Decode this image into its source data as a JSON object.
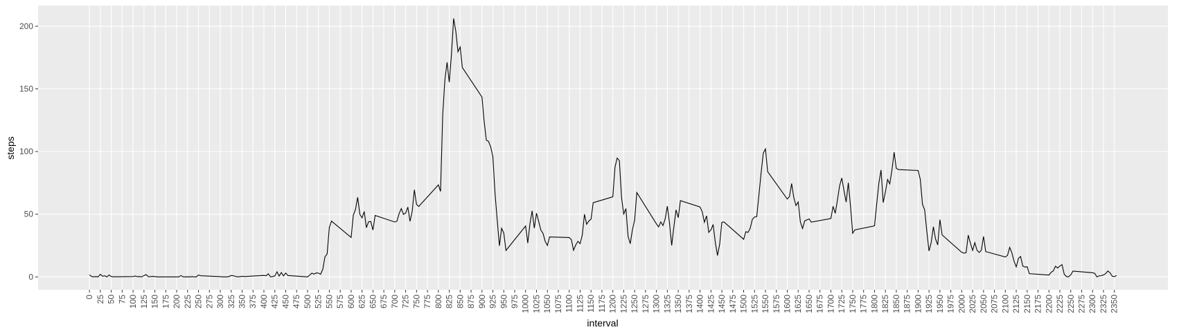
{
  "chart_data": {
    "type": "line",
    "xlabel": "interval",
    "ylabel": "steps",
    "color": "#000000",
    "grid": true,
    "x": [
      0,
      5,
      10,
      15,
      20,
      25,
      30,
      35,
      40,
      45,
      50,
      55,
      100,
      105,
      110,
      115,
      120,
      125,
      130,
      135,
      140,
      145,
      150,
      155,
      200,
      205,
      210,
      215,
      220,
      225,
      230,
      235,
      240,
      245,
      250,
      255,
      300,
      305,
      310,
      315,
      320,
      325,
      330,
      335,
      340,
      345,
      350,
      355,
      400,
      405,
      410,
      415,
      420,
      425,
      430,
      435,
      440,
      445,
      450,
      455,
      500,
      505,
      510,
      515,
      520,
      525,
      530,
      535,
      540,
      545,
      550,
      555,
      600,
      605,
      610,
      615,
      620,
      625,
      630,
      635,
      640,
      645,
      650,
      655,
      700,
      705,
      710,
      715,
      720,
      725,
      730,
      735,
      740,
      745,
      750,
      755,
      800,
      805,
      810,
      815,
      820,
      825,
      830,
      835,
      840,
      845,
      850,
      855,
      900,
      905,
      910,
      915,
      920,
      925,
      930,
      935,
      940,
      945,
      950,
      955,
      1000,
      1005,
      1010,
      1015,
      1020,
      1025,
      1030,
      1035,
      1040,
      1045,
      1050,
      1055,
      1100,
      1105,
      1110,
      1115,
      1120,
      1125,
      1130,
      1135,
      1140,
      1145,
      1150,
      1155,
      1200,
      1205,
      1210,
      1215,
      1220,
      1225,
      1230,
      1235,
      1240,
      1245,
      1250,
      1255,
      1300,
      1305,
      1310,
      1315,
      1320,
      1325,
      1330,
      1335,
      1340,
      1345,
      1350,
      1355,
      1400,
      1405,
      1410,
      1415,
      1420,
      1425,
      1430,
      1435,
      1440,
      1445,
      1450,
      1455,
      1500,
      1505,
      1510,
      1515,
      1520,
      1525,
      1530,
      1535,
      1540,
      1545,
      1550,
      1555,
      1600,
      1605,
      1610,
      1615,
      1620,
      1625,
      1630,
      1635,
      1640,
      1645,
      1650,
      1655,
      1700,
      1705,
      1710,
      1715,
      1720,
      1725,
      1730,
      1735,
      1740,
      1745,
      1750,
      1755,
      1800,
      1805,
      1810,
      1815,
      1820,
      1825,
      1830,
      1835,
      1840,
      1845,
      1850,
      1855,
      1900,
      1905,
      1910,
      1915,
      1920,
      1925,
      1930,
      1935,
      1940,
      1945,
      1950,
      1955,
      2000,
      2005,
      2010,
      2015,
      2020,
      2025,
      2030,
      2035,
      2040,
      2045,
      2050,
      2055,
      2100,
      2105,
      2110,
      2115,
      2120,
      2125,
      2130,
      2135,
      2140,
      2145,
      2150,
      2155,
      2200,
      2205,
      2210,
      2215,
      2220,
      2225,
      2230,
      2235,
      2240,
      2245,
      2250,
      2255,
      2300,
      2305,
      2310,
      2315,
      2320,
      2325,
      2330,
      2335,
      2340,
      2345,
      2350,
      2355
    ],
    "values": [
      1.7,
      0.3,
      0.1,
      0.2,
      0.1,
      2.1,
      0.5,
      0.9,
      0,
      1.5,
      0.3,
      0.1,
      0.3,
      0.7,
      0.2,
      0.3,
      0,
      1.1,
      1.8,
      0.2,
      0.2,
      0.4,
      0.3,
      0,
      0,
      0,
      1.1,
      0,
      0,
      0.1,
      0,
      0.2,
      0,
      0,
      1.5,
      0.9,
      0.2,
      0,
      0,
      0,
      0.3,
      1.1,
      0.9,
      0.4,
      0,
      0.2,
      0.5,
      0.3,
      1.2,
      0.9,
      2.5,
      0.1,
      0.3,
      0.8,
      4.1,
      0.7,
      3.5,
      0.8,
      3.1,
      1.1,
      0,
      1.5,
      3.0,
      2.2,
      3.2,
      3.0,
      2.1,
      6.1,
      16.0,
      18.3,
      39.5,
      44.5,
      31.5,
      49.3,
      53.8,
      63.5,
      50.0,
      47.1,
      52.2,
      39.3,
      44.0,
      44.2,
      37.4,
      49.0,
      43.8,
      44.4,
      50.5,
      54.5,
      49.9,
      50.98,
      55.7,
      44.3,
      52.3,
      69.5,
      57.8,
      56.2,
      73.4,
      68.2,
      129.4,
      157.5,
      171.2,
      155.4,
      177.3,
      206.2,
      195.9,
      179.6,
      183.4,
      167.0,
      143.5,
      124.0,
      109.1,
      108.1,
      103.7,
      95.97,
      66.2,
      45.2,
      24.8,
      38.8,
      34.98,
      21.1,
      40.6,
      26.98,
      42.4,
      52.7,
      38.9,
      50.8,
      44.3,
      37.4,
      34.7,
      28.3,
      25.1,
      31.9,
      31.4,
      29.7,
      21.3,
      25.5,
      28.4,
      26.5,
      33.4,
      49.98,
      42.0,
      44.6,
      46.0,
      59.2,
      63.9,
      87.6,
      94.8,
      92.8,
      63.4,
      50.2,
      54.5,
      32.4,
      26.5,
      37.7,
      45.1,
      67.3,
      42.3,
      39.9,
      43.9,
      40.98,
      46.2,
      56.4,
      42.8,
      25.1,
      39.97,
      53.5,
      47.3,
      60.8,
      55.8,
      51.96,
      43.6,
      48.7,
      35.5,
      37.5,
      41.8,
      27.5,
      17.1,
      26.1,
      43.6,
      43.8,
      30.0,
      36.1,
      35.5,
      38.8,
      45.96,
      47.8,
      48.1,
      65.3,
      82.9,
      98.7,
      102.1,
      83.96,
      62.1,
      64.1,
      74.5,
      63.2,
      56.9,
      59.8,
      43.9,
      38.6,
      44.7,
      45.5,
      46.2,
      43.7,
      46.6,
      56.3,
      50.7,
      61.2,
      72.7,
      78.9,
      68.9,
      59.7,
      75.1,
      56.5,
      34.8,
      37.5,
      40.7,
      58.0,
      74.7,
      85.3,
      59.3,
      67.8,
      77.7,
      74.2,
      85.3,
      99.5,
      86.6,
      85.6,
      84.9,
      77.8,
      58.0,
      53.4,
      36.3,
      20.7,
      27.4,
      40.0,
      30.2,
      25.5,
      45.7,
      33.5,
      19.6,
      19.0,
      19.3,
      33.3,
      26.8,
      21.2,
      27.3,
      21.3,
      19.5,
      21.3,
      32.3,
      20.2,
      15.9,
      17.2,
      23.5,
      19.2,
      12.5,
      8.0,
      14.7,
      16.3,
      8.7,
      7.8,
      8.1,
      2.6,
      1.5,
      3.7,
      4.8,
      8.5,
      7.1,
      8.7,
      9.8,
      2.2,
      0.3,
      0.1,
      1.6,
      4.6,
      3.3,
      2.8,
      0,
      0.8,
      1.0,
      1.6,
      2.6,
      4.7,
      3.3,
      0.6,
      0.2,
      1.1
    ],
    "xlim": [
      -117.75,
      2472.75
    ],
    "ylim": [
      -10.3,
      216.5
    ],
    "xticks": [
      0,
      25,
      50,
      75,
      100,
      125,
      150,
      175,
      200,
      225,
      250,
      275,
      300,
      325,
      350,
      375,
      400,
      425,
      450,
      475,
      500,
      525,
      550,
      575,
      600,
      625,
      650,
      675,
      700,
      725,
      750,
      775,
      800,
      825,
      850,
      875,
      900,
      925,
      950,
      975,
      1000,
      1025,
      1050,
      1075,
      1100,
      1125,
      1150,
      1175,
      1200,
      1225,
      1250,
      1275,
      1300,
      1325,
      1350,
      1375,
      1400,
      1425,
      1450,
      1475,
      1500,
      1525,
      1550,
      1575,
      1600,
      1625,
      1650,
      1675,
      1700,
      1725,
      1750,
      1775,
      1800,
      1825,
      1850,
      1875,
      1900,
      1925,
      1950,
      1975,
      2000,
      2025,
      2050,
      2075,
      2100,
      2125,
      2150,
      2175,
      2200,
      2225,
      2250,
      2275,
      2300,
      2325,
      2350
    ],
    "yticks": [
      0,
      50,
      100,
      150,
      200
    ]
  }
}
